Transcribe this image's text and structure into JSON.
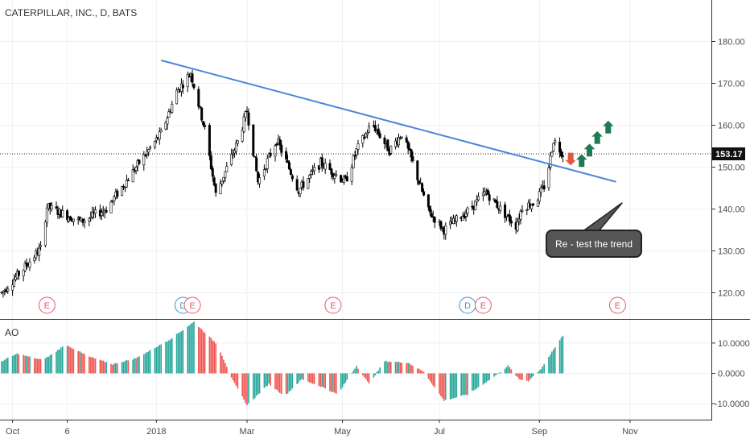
{
  "chart_data": [
    {
      "type": "candlestick",
      "title": "CATERPILLAR, INC., D, BATS",
      "ylim": [
        113,
        190
      ],
      "y_ticks": [
        "120.00",
        "130.00",
        "140.00",
        "150.00",
        "160.00",
        "170.00",
        "180.00"
      ],
      "x_ticks": [
        "Oct",
        "6",
        "2018",
        "Mar",
        "May",
        "Jul",
        "Sep",
        "Nov"
      ],
      "last_price": "153.17",
      "grid": true,
      "up_color": "#26a69a",
      "down_color": "#ef5350",
      "price_path": [
        [
          "2017-09-25",
          120.0
        ],
        [
          "2017-10-06",
          124.5
        ],
        [
          "2017-10-20",
          130.5
        ],
        [
          "2017-10-24",
          140.5
        ],
        [
          "2017-11-15",
          137.0
        ],
        [
          "2017-12-01",
          140.0
        ],
        [
          "2017-12-20",
          150.0
        ],
        [
          "2018-01-05",
          158.0
        ],
        [
          "2018-01-15",
          168.0
        ],
        [
          "2018-01-24",
          172.5
        ],
        [
          "2018-02-02",
          159.0
        ],
        [
          "2018-02-09",
          143.5
        ],
        [
          "2018-02-23",
          156.0
        ],
        [
          "2018-03-01",
          163.5
        ],
        [
          "2018-03-08",
          146.5
        ],
        [
          "2018-03-20",
          156.5
        ],
        [
          "2018-04-03",
          144.5
        ],
        [
          "2018-04-17",
          151.0
        ],
        [
          "2018-05-03",
          146.5
        ],
        [
          "2018-05-10",
          154.0
        ],
        [
          "2018-05-20",
          160.5
        ],
        [
          "2018-05-31",
          154.0
        ],
        [
          "2018-06-08",
          158.0
        ],
        [
          "2018-06-15",
          151.0
        ],
        [
          "2018-06-25",
          139.5
        ],
        [
          "2018-07-05",
          135.0
        ],
        [
          "2018-07-20",
          139.5
        ],
        [
          "2018-08-01",
          144.0
        ],
        [
          "2018-08-10",
          140.0
        ],
        [
          "2018-08-20",
          136.0
        ],
        [
          "2018-08-24",
          140.5
        ],
        [
          "2018-09-01",
          141.5
        ],
        [
          "2018-09-08",
          146.0
        ],
        [
          "2018-09-13",
          156.5
        ],
        [
          "2018-09-19",
          153.17
        ]
      ],
      "trendline": [
        [
          "2018-01-05",
          175.5
        ],
        [
          "2018-10-23",
          146.5
        ]
      ],
      "annotation": {
        "text": "Re - test the trend",
        "pointer_to": [
          "2018-10-27",
          141.5
        ]
      },
      "signal_arrows": [
        {
          "direction": "down",
          "color": "#e25645",
          "date": "2018-09-24",
          "price": 152.0
        },
        {
          "direction": "up",
          "color": "#1d7a52",
          "date": "2018-10-01",
          "price": 151.5
        },
        {
          "direction": "up",
          "color": "#1d7a52",
          "date": "2018-10-06",
          "price": 154.0
        },
        {
          "direction": "up",
          "color": "#1d7a52",
          "date": "2018-10-11",
          "price": 157.0
        },
        {
          "direction": "up",
          "color": "#1d7a52",
          "date": "2018-10-18",
          "price": 159.5
        }
      ],
      "events": [
        {
          "label": "E",
          "type": "earnings",
          "date": "2017-10-24"
        },
        {
          "label": "D",
          "type": "dividend",
          "date": "2018-01-19"
        },
        {
          "label": "E",
          "type": "earnings",
          "date": "2018-01-25"
        },
        {
          "label": "E",
          "type": "earnings",
          "date": "2018-04-25"
        },
        {
          "label": "D",
          "type": "dividend",
          "date": "2018-07-20"
        },
        {
          "label": "E",
          "type": "earnings",
          "date": "2018-07-30"
        },
        {
          "label": "E",
          "type": "earnings",
          "date": "2018-10-24"
        }
      ]
    },
    {
      "type": "bar",
      "title": "AO",
      "ylim": [
        -16,
        18
      ],
      "y_ticks": [
        "10.0000",
        "0.0000",
        "-10.0000"
      ],
      "colors": {
        "rising": "#26a69a",
        "falling": "#ef5350"
      },
      "value_path": [
        [
          "2017-09-25",
          4.0
        ],
        [
          "2017-10-05",
          6.5
        ],
        [
          "2017-10-20",
          4.5
        ],
        [
          "2017-10-25",
          5.5
        ],
        [
          "2017-11-05",
          9.5
        ],
        [
          "2017-11-20",
          5.5
        ],
        [
          "2017-12-05",
          3.0
        ],
        [
          "2017-12-20",
          5.0
        ],
        [
          "2018-01-10",
          11.0
        ],
        [
          "2018-01-26",
          17.0
        ],
        [
          "2018-02-10",
          9.5
        ],
        [
          "2018-02-20",
          -2.5
        ],
        [
          "2018-03-01",
          -10.5
        ],
        [
          "2018-03-15",
          -3.5
        ],
        [
          "2018-03-25",
          -7.5
        ],
        [
          "2018-04-05",
          -2.0
        ],
        [
          "2018-04-18",
          -4.5
        ],
        [
          "2018-04-28",
          -7.0
        ],
        [
          "2018-05-10",
          2.5
        ],
        [
          "2018-05-18",
          -3.5
        ],
        [
          "2018-05-28",
          4.0
        ],
        [
          "2018-06-12",
          3.5
        ],
        [
          "2018-06-22",
          0.5
        ],
        [
          "2018-07-05",
          -9.0
        ],
        [
          "2018-07-20",
          -7.0
        ],
        [
          "2018-08-05",
          -1.5
        ],
        [
          "2018-08-15",
          2.5
        ],
        [
          "2018-08-22",
          -2.0
        ],
        [
          "2018-08-28",
          -2.5
        ],
        [
          "2018-09-05",
          1.5
        ],
        [
          "2018-09-19",
          12.5
        ]
      ]
    }
  ]
}
